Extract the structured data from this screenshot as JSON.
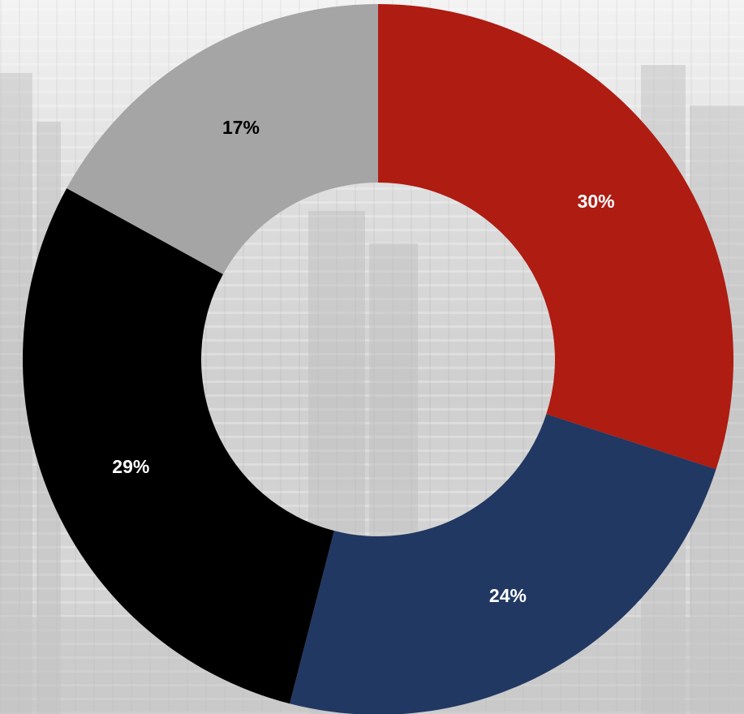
{
  "chart_data": {
    "type": "pie",
    "donut": true,
    "categories": [
      "",
      "",
      "",
      ""
    ],
    "values": [
      30,
      24,
      29,
      17
    ],
    "labels": [
      "30%",
      "24%",
      "29%",
      "17%"
    ],
    "colors": [
      "#ae1c12",
      "#213862",
      "#000000",
      "#a5a5a5"
    ],
    "label_colors": [
      "#ffffff",
      "#ffffff",
      "#ffffff",
      "#000000"
    ],
    "start_angle": "top",
    "direction": "clockwise",
    "legend": "none"
  }
}
